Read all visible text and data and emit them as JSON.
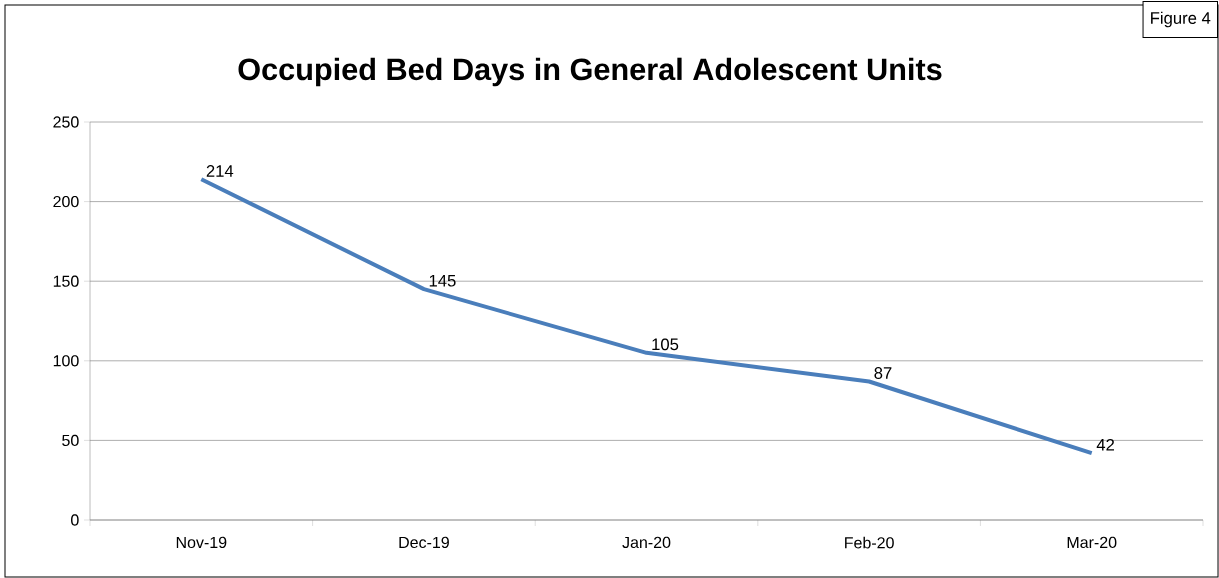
{
  "chart_data": {
    "type": "line",
    "title": "Occupied Bed Days in General Adolescent Units",
    "annotations": [
      "Figure 4"
    ],
    "categories": [
      "Nov-19",
      "Dec-19",
      "Jan-20",
      "Feb-20",
      "Mar-20"
    ],
    "series": [
      {
        "color": "#4a7ebb",
        "values": [
          214,
          145,
          105,
          87,
          42
        ]
      }
    ],
    "ylim": [
      0,
      250
    ],
    "yticks": [
      0,
      50,
      100,
      150,
      200,
      250
    ],
    "grid": "y",
    "data_labels": true
  }
}
